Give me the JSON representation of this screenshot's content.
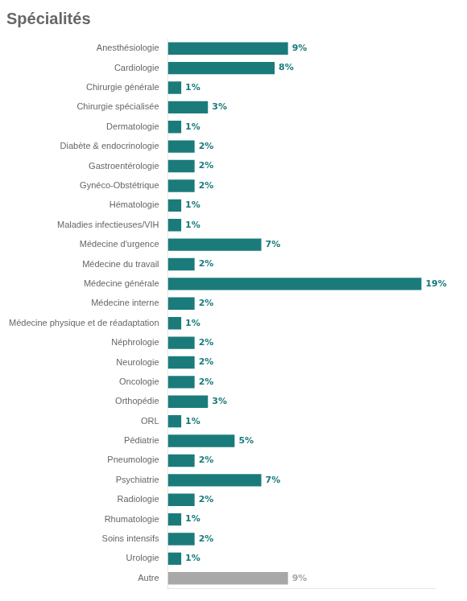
{
  "chart_data": {
    "type": "bar",
    "orientation": "horizontal",
    "title": "Spécialités",
    "categories": [
      "Anesthésiologie",
      "Cardiologie",
      "Chirurgie générale",
      "Chirurgie spécialisée",
      "Dermatologie",
      "Diabète & endocrinologie",
      "Gastroentérologie",
      "Gynéco-Obstétrique",
      "Hématologie",
      "Maladies infectieuses/VIH",
      "Médecine d'urgence",
      "Médecine du travail",
      "Médecine générale",
      "Médecine interne",
      "Médecine physique et de réadaptation",
      "Néphrologie",
      "Neurologie",
      "Oncologie",
      "Orthopédie",
      "ORL",
      "Pédiatrie",
      "Pneumologie",
      "Psychiatrie",
      "Radiologie",
      "Rhumatologie",
      "Soins intensifs",
      "Urologie",
      "Autre"
    ],
    "values": [
      9,
      8,
      1,
      3,
      1,
      2,
      2,
      2,
      1,
      1,
      7,
      2,
      19,
      2,
      1,
      2,
      2,
      2,
      3,
      1,
      5,
      2,
      7,
      2,
      1,
      2,
      1,
      9
    ],
    "value_labels": [
      "9%",
      "8%",
      "1%",
      "3%",
      "1%",
      "2%",
      "2%",
      "2%",
      "1%",
      "1%",
      "7%",
      "2%",
      "19%",
      "2%",
      "1%",
      "2%",
      "2%",
      "2%",
      "3%",
      "1%",
      "5%",
      "2%",
      "7%",
      "2%",
      "1%",
      "2%",
      "1%",
      "9%"
    ],
    "colors": [
      "#1b7b7b",
      "#1b7b7b",
      "#1b7b7b",
      "#1b7b7b",
      "#1b7b7b",
      "#1b7b7b",
      "#1b7b7b",
      "#1b7b7b",
      "#1b7b7b",
      "#1b7b7b",
      "#1b7b7b",
      "#1b7b7b",
      "#1b7b7b",
      "#1b7b7b",
      "#1b7b7b",
      "#1b7b7b",
      "#1b7b7b",
      "#1b7b7b",
      "#1b7b7b",
      "#1b7b7b",
      "#1b7b7b",
      "#1b7b7b",
      "#1b7b7b",
      "#1b7b7b",
      "#1b7b7b",
      "#1b7b7b",
      "#1b7b7b",
      "#a8a8a8"
    ],
    "xlim": [
      0,
      20
    ],
    "grid": false,
    "data_labels": true,
    "tick_labels": "y"
  }
}
